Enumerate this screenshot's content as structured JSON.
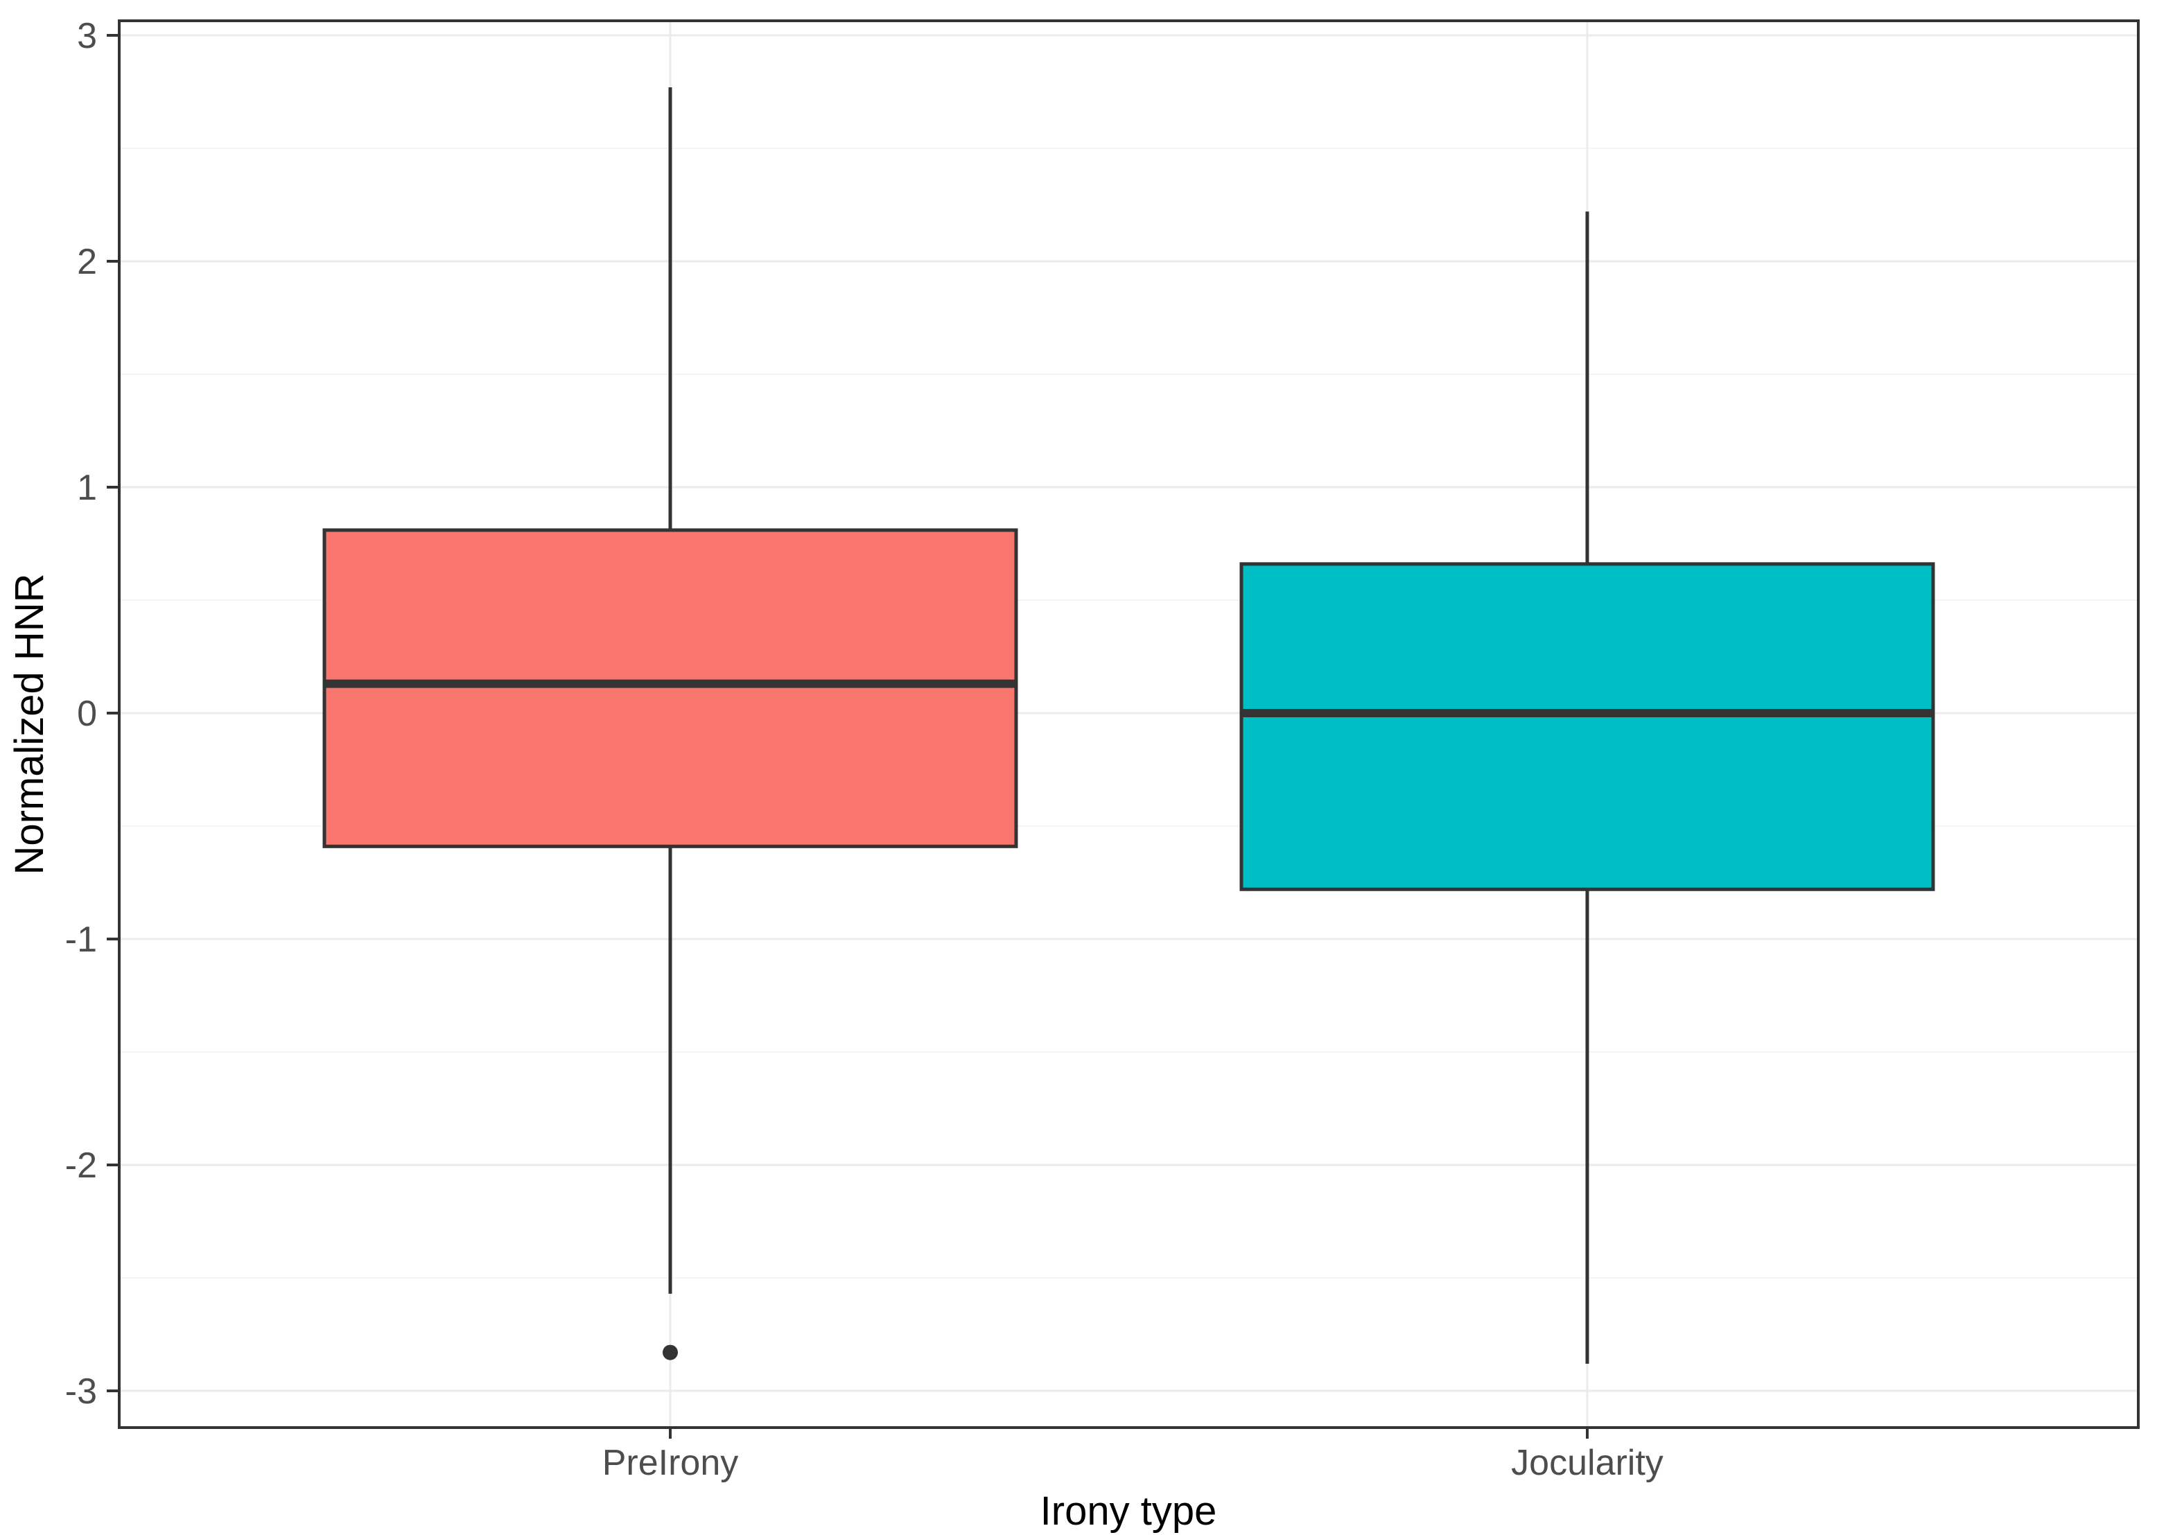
{
  "chart_data": {
    "type": "box",
    "title": "",
    "xlabel": "Irony type",
    "ylabel": "Normalized HNR",
    "ylim": [
      -3.15,
      3.05
    ],
    "yticks": [
      3,
      2,
      1,
      0,
      -1,
      -2,
      -3
    ],
    "ytick_labels": [
      "3",
      "2",
      "1",
      "0",
      "-1",
      "-2",
      "-3"
    ],
    "minor_gridlines": [
      2.5,
      1.5,
      0.5,
      -0.5,
      -1.5,
      -2.5
    ],
    "grid": "horizontal major at integers, horizontal minor at halves, vertical major at each category",
    "legend": "none",
    "categories": [
      "PreIrony",
      "Jocularity"
    ],
    "series": [
      {
        "name": "PreIrony",
        "color": "#F8766D",
        "whisker_low": -2.57,
        "q1": -0.59,
        "median": 0.13,
        "q3": 0.81,
        "whisker_high": 2.77,
        "outliers": [
          -2.83
        ]
      },
      {
        "name": "Jocularity",
        "color": "#00BFC4",
        "whisker_low": -2.88,
        "q1": -0.78,
        "median": 0.0,
        "q3": 0.66,
        "whisker_high": 2.22,
        "outliers": []
      }
    ],
    "colors": {
      "box_stroke": "#333333",
      "median_stroke": "#333333",
      "outlier_fill": "#333333",
      "panel_border": "#333333",
      "grid_major": "#EBEBEB",
      "grid_minor": "#F5F5F5",
      "tick_mark": "#333333",
      "tick_text": "#4D4D4D",
      "axis_title_text": "#000000",
      "background": "#FFFFFF"
    }
  }
}
